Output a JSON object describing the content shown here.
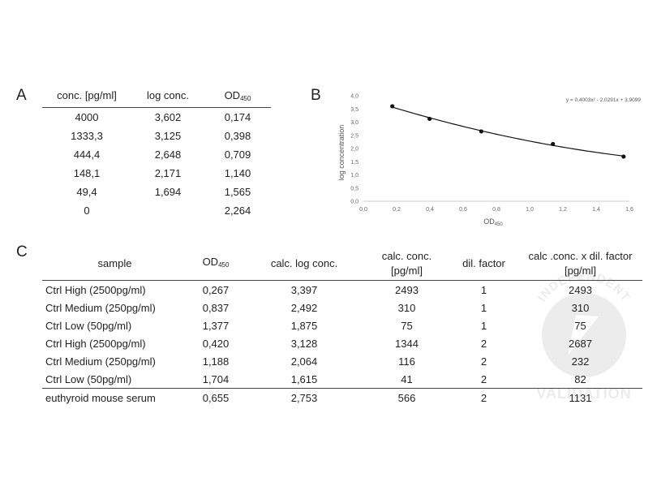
{
  "panels": {
    "a": "A",
    "b": "B",
    "c": "C"
  },
  "table_a": {
    "headers": {
      "conc": "conc. [pg/ml]",
      "log": "log conc.",
      "od": "OD",
      "od_sub": "450"
    },
    "rows": [
      {
        "conc": "4000",
        "log": "3,602",
        "od": "0,174"
      },
      {
        "conc": "1333,3",
        "log": "3,125",
        "od": "0,398"
      },
      {
        "conc": "444,4",
        "log": "2,648",
        "od": "0,709"
      },
      {
        "conc": "148,1",
        "log": "2,171",
        "od": "1,140"
      },
      {
        "conc": "49,4",
        "log": "1,694",
        "od": "1,565"
      },
      {
        "conc": "0",
        "log": "",
        "od": "2,264"
      }
    ]
  },
  "chart_data": {
    "type": "scatter",
    "title": "",
    "xlabel": "OD",
    "xlabel_sub": "450",
    "ylabel": "log concentration",
    "equation": "y = 0,4003x² - 2,0291x + 3,9099",
    "x": [
      0.174,
      0.398,
      0.709,
      1.14,
      1.565
    ],
    "y": [
      3.602,
      3.125,
      2.648,
      2.171,
      1.694
    ],
    "fit": {
      "a": 0.4003,
      "b": -2.0291,
      "c": 3.9099
    },
    "xlim": [
      0,
      1.6
    ],
    "ylim": [
      0,
      4.0
    ],
    "x_ticks": [
      "0,0",
      "0,2",
      "0,4",
      "0,6",
      "0,8",
      "1,0",
      "1,2",
      "1,4",
      "1,6"
    ],
    "y_ticks": [
      "0,0",
      "0,5",
      "1,0",
      "1,5",
      "2,0",
      "2,5",
      "3,0",
      "3,5",
      "4,0"
    ]
  },
  "table_c": {
    "headers": {
      "sample": "sample",
      "od": "OD",
      "od_sub": "450",
      "log": "calc. log conc.",
      "conc_1": "calc. conc.",
      "conc_2": "[pg/ml]",
      "dil": "dil. factor",
      "final_1": "calc .conc. x dil. factor",
      "final_2": "[pg/ml]"
    },
    "rows": [
      {
        "sample": "Ctrl High (2500pg/ml)",
        "od": "0,267",
        "log": "3,397",
        "conc": "2493",
        "dil": "1",
        "final": "2493"
      },
      {
        "sample": "Ctrl Medium (250pg/ml)",
        "od": "0,837",
        "log": "2,492",
        "conc": "310",
        "dil": "1",
        "final": "310"
      },
      {
        "sample": "Ctrl Low (50pg/ml)",
        "od": "1,377",
        "log": "1,875",
        "conc": "75",
        "dil": "1",
        "final": "75"
      },
      {
        "sample": "Ctrl High (2500pg/ml)",
        "od": "0,420",
        "log": "3,128",
        "conc": "1344",
        "dil": "2",
        "final": "2687"
      },
      {
        "sample": "Ctrl Medium (250pg/ml)",
        "od": "1,188",
        "log": "2,064",
        "conc": "116",
        "dil": "2",
        "final": "232"
      },
      {
        "sample": "Ctrl Low (50pg/ml)",
        "od": "1,704",
        "log": "1,615",
        "conc": "41",
        "dil": "2",
        "final": "82"
      }
    ],
    "last_row": {
      "sample": "euthyroid mouse serum",
      "od": "0,655",
      "log": "2,753",
      "conc": "566",
      "dil": "2",
      "final": "1131"
    }
  },
  "watermark": {
    "top": "INDEPENDENT",
    "bottom": "VALIDATION",
    "color": "#e8e8e8"
  }
}
